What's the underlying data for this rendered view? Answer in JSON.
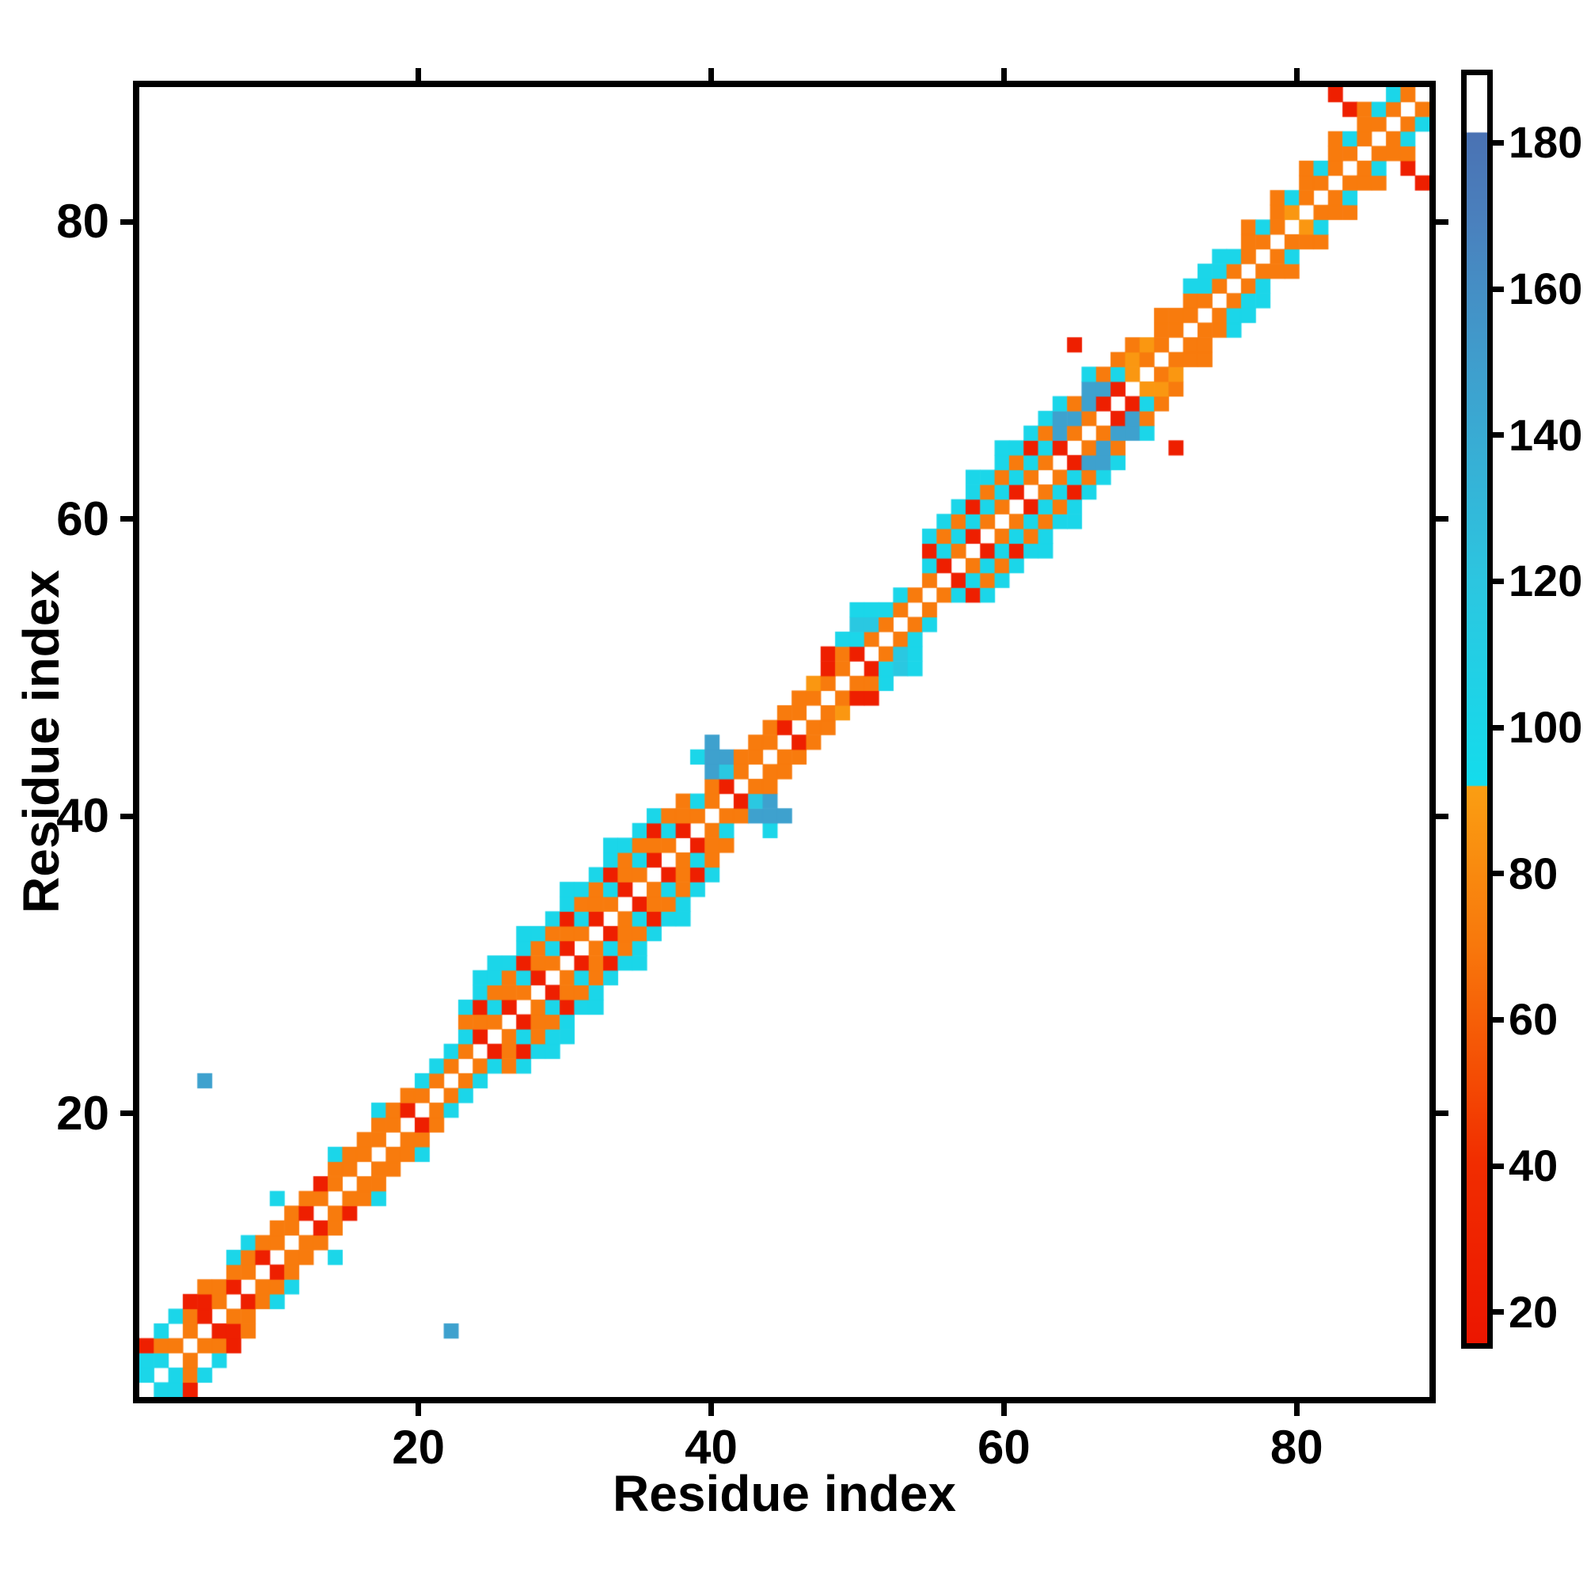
{
  "figure": {
    "background": "#ffffff"
  },
  "axes": {
    "xlabel": "Residue index",
    "ylabel": "Residue index",
    "x_ticks": [
      20,
      40,
      60,
      80
    ],
    "y_ticks": [
      20,
      40,
      60,
      80
    ],
    "axis_min": 0.5,
    "axis_max": 89.5,
    "border_color": "#000000"
  },
  "colorbar": {
    "min": 15,
    "max": 190,
    "ticks": [
      20,
      40,
      60,
      80,
      100,
      120,
      140,
      160,
      180
    ],
    "stops": [
      [
        15,
        "#ec1600"
      ],
      [
        40,
        "#f12d00"
      ],
      [
        52,
        "#f44d04"
      ],
      [
        70,
        "#f8780c"
      ],
      [
        91.8,
        "#fa9e12"
      ],
      [
        92,
        "#14dcec"
      ],
      [
        120,
        "#2cc6e0"
      ],
      [
        150,
        "#3f9ecd"
      ],
      [
        170,
        "#4a80bd"
      ],
      [
        182,
        "#4a72b3"
      ],
      [
        182.2,
        "#ffffff"
      ],
      [
        190,
        "#ffffff"
      ]
    ]
  },
  "chart_data": {
    "type": "heatmap",
    "title": "",
    "xlabel": "Residue index",
    "ylabel": "Residue index",
    "n_residues": 89,
    "symmetric": true,
    "value_range": [
      15,
      190
    ],
    "legend_note": "approx values: 25=red, 50=red-orange, 72=orange, 88=light-orange, 100=cyan, 118=teal, 148=sky-blue, 172=steel-blue",
    "cells": [
      [
        1,
        2,
        100
      ],
      [
        1,
        3,
        100
      ],
      [
        1,
        4,
        25
      ],
      [
        2,
        3,
        100
      ],
      [
        2,
        4,
        72
      ],
      [
        2,
        5,
        100
      ],
      [
        3,
        4,
        72
      ],
      [
        3,
        6,
        100
      ],
      [
        4,
        5,
        72
      ],
      [
        4,
        6,
        72
      ],
      [
        4,
        7,
        25
      ],
      [
        5,
        6,
        25
      ],
      [
        5,
        7,
        25
      ],
      [
        5,
        8,
        72
      ],
      [
        5,
        22,
        148
      ],
      [
        6,
        7,
        72
      ],
      [
        6,
        8,
        72
      ],
      [
        7,
        8,
        25
      ],
      [
        7,
        9,
        72
      ],
      [
        7,
        10,
        100
      ],
      [
        8,
        9,
        72
      ],
      [
        8,
        10,
        72
      ],
      [
        8,
        11,
        100
      ],
      [
        9,
        10,
        25
      ],
      [
        9,
        11,
        72
      ],
      [
        10,
        11,
        72
      ],
      [
        10,
        12,
        72
      ],
      [
        10,
        14,
        100
      ],
      [
        11,
        12,
        72
      ],
      [
        11,
        13,
        72
      ],
      [
        12,
        13,
        25
      ],
      [
        12,
        14,
        72
      ],
      [
        13,
        14,
        72
      ],
      [
        13,
        15,
        25
      ],
      [
        14,
        15,
        72
      ],
      [
        14,
        16,
        72
      ],
      [
        14,
        17,
        100
      ],
      [
        15,
        16,
        72
      ],
      [
        15,
        17,
        72
      ],
      [
        16,
        17,
        72
      ],
      [
        16,
        18,
        72
      ],
      [
        17,
        18,
        72
      ],
      [
        17,
        19,
        72
      ],
      [
        17,
        20,
        100
      ],
      [
        18,
        19,
        72
      ],
      [
        18,
        20,
        72
      ],
      [
        19,
        20,
        25
      ],
      [
        19,
        21,
        72
      ],
      [
        20,
        21,
        72
      ],
      [
        20,
        22,
        100
      ],
      [
        21,
        22,
        72
      ],
      [
        21,
        23,
        100
      ],
      [
        22,
        23,
        72
      ],
      [
        22,
        24,
        100
      ],
      [
        23,
        24,
        72
      ],
      [
        23,
        25,
        100
      ],
      [
        23,
        26,
        72
      ],
      [
        23,
        27,
        100
      ],
      [
        24,
        25,
        25
      ],
      [
        24,
        26,
        72
      ],
      [
        24,
        27,
        25
      ],
      [
        24,
        28,
        100
      ],
      [
        24,
        29,
        100
      ],
      [
        25,
        26,
        72
      ],
      [
        25,
        27,
        100
      ],
      [
        25,
        28,
        72
      ],
      [
        25,
        29,
        100
      ],
      [
        25,
        30,
        100
      ],
      [
        26,
        27,
        25
      ],
      [
        26,
        28,
        72
      ],
      [
        26,
        29,
        72
      ],
      [
        26,
        30,
        100
      ],
      [
        27,
        28,
        72
      ],
      [
        27,
        29,
        100
      ],
      [
        27,
        30,
        25
      ],
      [
        27,
        31,
        100
      ],
      [
        27,
        32,
        100
      ],
      [
        28,
        29,
        25
      ],
      [
        28,
        30,
        72
      ],
      [
        28,
        31,
        72
      ],
      [
        28,
        32,
        100
      ],
      [
        29,
        30,
        72
      ],
      [
        29,
        31,
        100
      ],
      [
        29,
        32,
        72
      ],
      [
        29,
        33,
        100
      ],
      [
        30,
        31,
        25
      ],
      [
        30,
        32,
        72
      ],
      [
        30,
        33,
        25
      ],
      [
        30,
        34,
        100
      ],
      [
        30,
        35,
        100
      ],
      [
        31,
        32,
        72
      ],
      [
        31,
        33,
        100
      ],
      [
        31,
        34,
        72
      ],
      [
        31,
        35,
        100
      ],
      [
        32,
        33,
        25
      ],
      [
        32,
        34,
        72
      ],
      [
        32,
        35,
        72
      ],
      [
        32,
        36,
        100
      ],
      [
        33,
        34,
        72
      ],
      [
        33,
        35,
        100
      ],
      [
        33,
        36,
        25
      ],
      [
        33,
        37,
        100
      ],
      [
        33,
        38,
        100
      ],
      [
        34,
        35,
        25
      ],
      [
        34,
        36,
        72
      ],
      [
        34,
        37,
        72
      ],
      [
        34,
        38,
        100
      ],
      [
        35,
        36,
        72
      ],
      [
        35,
        37,
        100
      ],
      [
        35,
        38,
        72
      ],
      [
        35,
        39,
        100
      ],
      [
        36,
        37,
        25
      ],
      [
        36,
        38,
        72
      ],
      [
        36,
        39,
        25
      ],
      [
        36,
        40,
        100
      ],
      [
        37,
        38,
        72
      ],
      [
        37,
        39,
        100
      ],
      [
        37,
        40,
        72
      ],
      [
        38,
        39,
        25
      ],
      [
        38,
        40,
        72
      ],
      [
        38,
        41,
        72
      ],
      [
        39,
        40,
        72
      ],
      [
        39,
        41,
        100
      ],
      [
        39,
        44,
        100
      ],
      [
        40,
        41,
        72
      ],
      [
        40,
        42,
        72
      ],
      [
        40,
        43,
        148
      ],
      [
        40,
        44,
        148
      ],
      [
        40,
        45,
        148
      ],
      [
        41,
        42,
        25
      ],
      [
        41,
        43,
        118
      ],
      [
        41,
        44,
        148
      ],
      [
        42,
        43,
        72
      ],
      [
        42,
        44,
        72
      ],
      [
        43,
        44,
        72
      ],
      [
        43,
        45,
        72
      ],
      [
        44,
        45,
        72
      ],
      [
        44,
        46,
        72
      ],
      [
        45,
        46,
        25
      ],
      [
        45,
        47,
        72
      ],
      [
        46,
        47,
        72
      ],
      [
        46,
        48,
        72
      ],
      [
        47,
        48,
        72
      ],
      [
        47,
        49,
        88
      ],
      [
        48,
        49,
        72
      ],
      [
        48,
        50,
        25
      ],
      [
        48,
        51,
        25
      ],
      [
        49,
        50,
        72
      ],
      [
        49,
        51,
        72
      ],
      [
        49,
        52,
        100
      ],
      [
        50,
        51,
        25
      ],
      [
        50,
        52,
        100
      ],
      [
        50,
        53,
        118
      ],
      [
        50,
        54,
        100
      ],
      [
        51,
        52,
        72
      ],
      [
        51,
        53,
        118
      ],
      [
        51,
        54,
        100
      ],
      [
        52,
        53,
        72
      ],
      [
        52,
        54,
        100
      ],
      [
        53,
        54,
        72
      ],
      [
        53,
        55,
        100
      ],
      [
        54,
        55,
        72
      ],
      [
        55,
        56,
        72
      ],
      [
        55,
        57,
        100
      ],
      [
        55,
        58,
        25
      ],
      [
        55,
        59,
        100
      ],
      [
        56,
        57,
        25
      ],
      [
        56,
        58,
        100
      ],
      [
        56,
        59,
        72
      ],
      [
        56,
        60,
        100
      ],
      [
        57,
        58,
        72
      ],
      [
        57,
        59,
        100
      ],
      [
        57,
        60,
        72
      ],
      [
        57,
        61,
        100
      ],
      [
        58,
        59,
        25
      ],
      [
        58,
        60,
        100
      ],
      [
        58,
        61,
        25
      ],
      [
        58,
        62,
        100
      ],
      [
        58,
        63,
        100
      ],
      [
        59,
        60,
        72
      ],
      [
        59,
        61,
        100
      ],
      [
        59,
        62,
        72
      ],
      [
        59,
        63,
        100
      ],
      [
        60,
        61,
        72
      ],
      [
        60,
        62,
        100
      ],
      [
        60,
        63,
        72
      ],
      [
        60,
        64,
        100
      ],
      [
        60,
        65,
        100
      ],
      [
        61,
        62,
        25
      ],
      [
        61,
        63,
        100
      ],
      [
        61,
        64,
        72
      ],
      [
        61,
        65,
        100
      ],
      [
        62,
        63,
        72
      ],
      [
        62,
        64,
        100
      ],
      [
        62,
        65,
        25
      ],
      [
        62,
        66,
        100
      ],
      [
        63,
        64,
        72
      ],
      [
        63,
        65,
        100
      ],
      [
        63,
        66,
        72
      ],
      [
        63,
        67,
        100
      ],
      [
        64,
        65,
        25
      ],
      [
        64,
        66,
        148
      ],
      [
        64,
        67,
        148
      ],
      [
        64,
        68,
        100
      ],
      [
        65,
        66,
        72
      ],
      [
        65,
        67,
        148
      ],
      [
        65,
        68,
        72
      ],
      [
        65,
        72,
        25
      ],
      [
        66,
        67,
        72
      ],
      [
        66,
        68,
        148
      ],
      [
        66,
        69,
        148
      ],
      [
        66,
        70,
        100
      ],
      [
        67,
        68,
        25
      ],
      [
        67,
        69,
        148
      ],
      [
        67,
        70,
        72
      ],
      [
        68,
        69,
        25
      ],
      [
        68,
        70,
        100
      ],
      [
        68,
        71,
        72
      ],
      [
        69,
        70,
        88
      ],
      [
        69,
        71,
        88
      ],
      [
        69,
        72,
        72
      ],
      [
        70,
        71,
        72
      ],
      [
        70,
        72,
        88
      ],
      [
        71,
        72,
        72
      ],
      [
        71,
        73,
        72
      ],
      [
        71,
        74,
        72
      ],
      [
        72,
        73,
        72
      ],
      [
        72,
        74,
        72
      ],
      [
        73,
        74,
        72
      ],
      [
        73,
        75,
        72
      ],
      [
        73,
        76,
        100
      ],
      [
        74,
        75,
        72
      ],
      [
        74,
        76,
        100
      ],
      [
        74,
        77,
        100
      ],
      [
        75,
        76,
        72
      ],
      [
        75,
        77,
        100
      ],
      [
        75,
        78,
        100
      ],
      [
        76,
        77,
        72
      ],
      [
        76,
        78,
        100
      ],
      [
        77,
        78,
        72
      ],
      [
        77,
        79,
        72
      ],
      [
        77,
        80,
        72
      ],
      [
        78,
        79,
        72
      ],
      [
        78,
        80,
        100
      ],
      [
        79,
        80,
        72
      ],
      [
        79,
        81,
        72
      ],
      [
        79,
        82,
        72
      ],
      [
        80,
        81,
        88
      ],
      [
        80,
        82,
        100
      ],
      [
        81,
        82,
        72
      ],
      [
        81,
        83,
        72
      ],
      [
        81,
        84,
        72
      ],
      [
        82,
        83,
        72
      ],
      [
        82,
        84,
        100
      ],
      [
        83,
        84,
        72
      ],
      [
        83,
        85,
        72
      ],
      [
        83,
        86,
        72
      ],
      [
        83,
        89,
        25
      ],
      [
        84,
        85,
        72
      ],
      [
        84,
        86,
        100
      ],
      [
        84,
        88,
        25
      ],
      [
        85,
        86,
        72
      ],
      [
        85,
        87,
        72
      ],
      [
        85,
        88,
        72
      ],
      [
        86,
        87,
        72
      ],
      [
        86,
        88,
        100
      ],
      [
        87,
        88,
        72
      ],
      [
        87,
        89,
        100
      ],
      [
        88,
        89,
        72
      ]
    ]
  }
}
